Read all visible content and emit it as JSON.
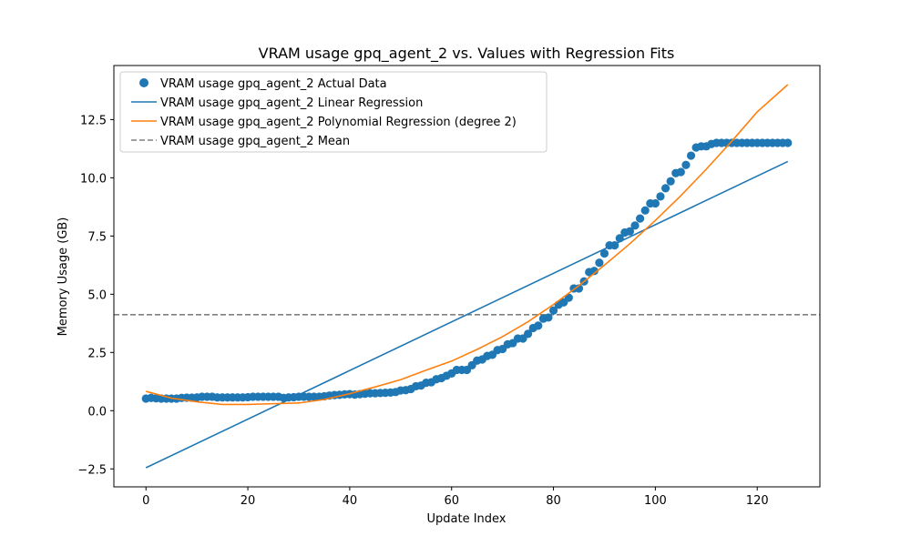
{
  "chart_data": {
    "type": "scatter",
    "title": "VRAM usage gpq_agent_2 vs. Values with Regression Fits",
    "xlabel": "Update Index",
    "ylabel": "Memory Usage (GB)",
    "xlim": [
      -6.3,
      132.3
    ],
    "ylim": [
      -3.27,
      14.82
    ],
    "x_ticks": [
      0,
      20,
      40,
      60,
      80,
      100,
      120
    ],
    "y_ticks": [
      -2.5,
      0.0,
      2.5,
      5.0,
      7.5,
      10.0,
      12.5
    ],
    "x_tick_labels": [
      "0",
      "20",
      "40",
      "60",
      "80",
      "100",
      "120"
    ],
    "y_tick_labels": [
      "−2.5",
      "0.0",
      "2.5",
      "5.0",
      "7.5",
      "10.0",
      "12.5"
    ],
    "grid": false,
    "legend_position": "top-left",
    "colors": {
      "actual": "#1f77b4",
      "linear": "#1f77b4",
      "poly": "#ff7f0e",
      "mean": "#808080"
    },
    "series": [
      {
        "name": "VRAM usage gpq_agent_2 Actual Data",
        "kind": "scatter",
        "x": [
          0,
          1,
          2,
          3,
          4,
          5,
          6,
          7,
          8,
          9,
          10,
          11,
          12,
          13,
          14,
          15,
          16,
          17,
          18,
          19,
          20,
          21,
          22,
          23,
          24,
          25,
          26,
          27,
          28,
          29,
          30,
          31,
          32,
          33,
          34,
          35,
          36,
          37,
          38,
          39,
          40,
          41,
          42,
          43,
          44,
          45,
          46,
          47,
          48,
          49,
          50,
          51,
          52,
          53,
          54,
          55,
          56,
          57,
          58,
          59,
          60,
          61,
          62,
          63,
          64,
          65,
          66,
          67,
          68,
          69,
          70,
          71,
          72,
          73,
          74,
          75,
          76,
          77,
          78,
          79,
          80,
          81,
          82,
          83,
          84,
          85,
          86,
          87,
          88,
          89,
          90,
          91,
          92,
          93,
          94,
          95,
          96,
          97,
          98,
          99,
          100,
          101,
          102,
          103,
          104,
          105,
          106,
          107,
          108,
          109,
          110,
          111,
          112,
          113,
          114,
          115,
          116,
          117,
          118,
          119,
          120,
          121,
          122,
          123,
          124,
          125,
          126
        ],
        "y": [
          0.52,
          0.55,
          0.53,
          0.52,
          0.52,
          0.52,
          0.52,
          0.55,
          0.56,
          0.56,
          0.57,
          0.6,
          0.6,
          0.6,
          0.57,
          0.57,
          0.57,
          0.57,
          0.57,
          0.57,
          0.58,
          0.6,
          0.6,
          0.6,
          0.6,
          0.6,
          0.6,
          0.55,
          0.57,
          0.58,
          0.6,
          0.6,
          0.6,
          0.6,
          0.6,
          0.62,
          0.65,
          0.67,
          0.68,
          0.7,
          0.71,
          0.69,
          0.71,
          0.73,
          0.75,
          0.75,
          0.76,
          0.77,
          0.78,
          0.8,
          0.87,
          0.88,
          0.93,
          1.05,
          1.08,
          1.2,
          1.22,
          1.35,
          1.4,
          1.5,
          1.6,
          1.75,
          1.75,
          1.75,
          1.95,
          2.15,
          2.2,
          2.35,
          2.4,
          2.6,
          2.65,
          2.85,
          2.9,
          3.1,
          3.1,
          3.3,
          3.55,
          3.65,
          3.95,
          4.0,
          4.3,
          4.55,
          4.65,
          4.85,
          5.25,
          5.25,
          5.55,
          5.95,
          6.0,
          6.35,
          6.75,
          7.1,
          7.1,
          7.4,
          7.65,
          7.7,
          7.95,
          8.25,
          8.6,
          8.9,
          8.9,
          9.2,
          9.55,
          9.85,
          10.2,
          10.25,
          10.55,
          10.95,
          11.3,
          11.35,
          11.35,
          11.45,
          11.5,
          11.5,
          11.5,
          11.5,
          11.5,
          11.5,
          11.5,
          11.5,
          11.5,
          11.5,
          11.5,
          11.5,
          11.5,
          11.5,
          11.5
        ]
      },
      {
        "name": "VRAM usage gpq_agent_2 Linear Regression",
        "kind": "line",
        "x": [
          0,
          126
        ],
        "y": [
          -2.45,
          10.7
        ]
      },
      {
        "name": "VRAM usage gpq_agent_2 Polynomial Regression (degree 2)",
        "kind": "line",
        "x": [
          0,
          5,
          10,
          15,
          20,
          25,
          30,
          35,
          40,
          45,
          50,
          55,
          60,
          65,
          70,
          75,
          80,
          85,
          90,
          95,
          100,
          105,
          110,
          115,
          120,
          126
        ],
        "y": [
          0.83,
          0.54,
          0.38,
          0.27,
          0.27,
          0.3,
          0.33,
          0.48,
          0.73,
          1.02,
          1.33,
          1.74,
          2.13,
          2.63,
          3.18,
          3.82,
          4.56,
          5.37,
          6.25,
          7.17,
          8.17,
          9.23,
          10.37,
          11.57,
          12.83,
          14.0
        ]
      },
      {
        "name": "VRAM usage gpq_agent_2 Mean",
        "kind": "hline",
        "y": 4.12
      }
    ]
  }
}
